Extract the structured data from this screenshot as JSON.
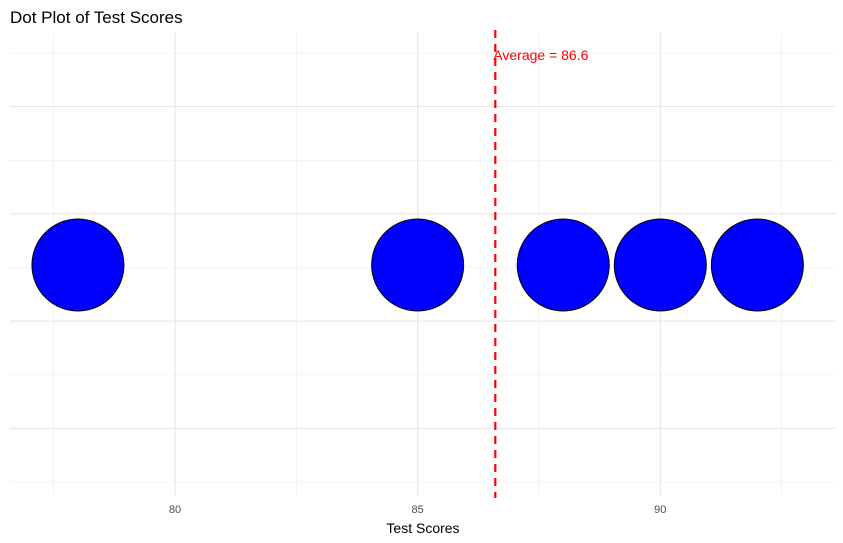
{
  "chart_data": {
    "type": "scatter",
    "title": "Dot Plot of Test Scores",
    "xlabel": "Test Scores",
    "ylabel": "",
    "xlim": [
      76.6,
      93.6
    ],
    "x_ticks": [
      80,
      85,
      90
    ],
    "x_tick_labels": [
      "80",
      "85",
      "90"
    ],
    "values": [
      78,
      85,
      88,
      90,
      92
    ],
    "point_color": "#0000ff",
    "point_outline": "#000000",
    "grid": true,
    "reference_line": {
      "value": 86.6,
      "label": "Average = 86.6",
      "color": "#ff0000",
      "style": "dashed"
    }
  }
}
